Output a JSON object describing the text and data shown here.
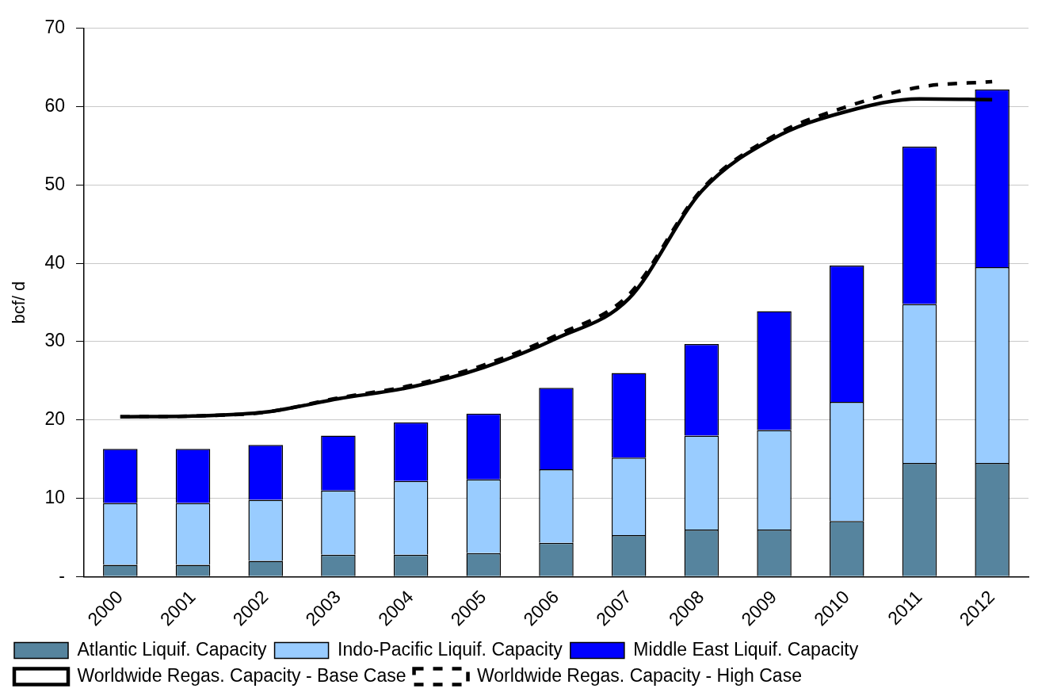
{
  "chart_data": {
    "type": "bar",
    "stacked": true,
    "ylabel": "bcf/ d",
    "categories": [
      "2000",
      "2001",
      "2002",
      "2003",
      "2004",
      "2005",
      "2006",
      "2007",
      "2008",
      "2009",
      "2010",
      "2011",
      "2012"
    ],
    "series": [
      {
        "name": "Atlantic Liquif. Capacity",
        "color": "#56849e",
        "values": [
          1.5,
          1.5,
          2.0,
          2.8,
          2.8,
          3.0,
          4.3,
          5.3,
          6.0,
          6.0,
          7.1,
          14.5,
          14.5
        ]
      },
      {
        "name": "Indo-Pacific Liquif. Capacity",
        "color": "#99ccff",
        "values": [
          7.9,
          7.9,
          7.8,
          8.2,
          9.4,
          9.4,
          9.4,
          9.9,
          12.0,
          12.7,
          15.2,
          20.3,
          25.0
        ]
      },
      {
        "name": "Middle East Liquif. Capacity",
        "color": "#0000ff",
        "values": [
          6.9,
          6.9,
          7.0,
          7.0,
          7.5,
          8.4,
          10.4,
          10.8,
          11.7,
          15.2,
          17.4,
          20.1,
          22.7
        ]
      },
      {
        "name": "Worldwide Regas. Capacity - Base Case",
        "type": "line",
        "line_style": "solid",
        "color": "#000000",
        "values": [
          20.4,
          20.5,
          21.0,
          22.7,
          24.2,
          26.7,
          30.4,
          35.5,
          49.2,
          56.0,
          59.4,
          61.0,
          60.9
        ]
      },
      {
        "name": "Worldwide Regas. Capacity - High Case",
        "type": "line",
        "line_style": "dashed",
        "color": "#000000",
        "values": [
          20.4,
          20.5,
          21.0,
          22.8,
          24.4,
          27.0,
          30.8,
          36.0,
          49.4,
          56.3,
          60.0,
          62.5,
          63.2
        ]
      }
    ],
    "ylim": [
      0,
      70
    ],
    "yticks": [
      {
        "value": 0,
        "label": "-"
      },
      10,
      20,
      30,
      40,
      50,
      60,
      70
    ],
    "grid": "y",
    "legend": "bottom",
    "marker": "none"
  }
}
